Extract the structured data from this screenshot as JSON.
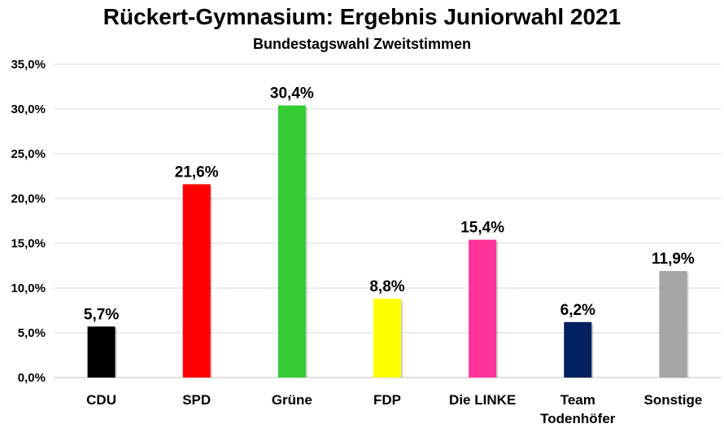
{
  "chart_data": {
    "type": "bar",
    "title": "Rückert-Gymnasium: Ergebnis Juniorwahl 2021",
    "subtitle": "Bundestagswahl Zweitstimmen",
    "categories": [
      "CDU",
      "SPD",
      "Grüne",
      "FDP",
      "Die LINKE",
      "Team Todenhöfer",
      "Sonstige"
    ],
    "category_lines": [
      [
        "CDU"
      ],
      [
        "SPD"
      ],
      [
        "Grüne"
      ],
      [
        "FDP"
      ],
      [
        "Die LINKE"
      ],
      [
        "Team",
        "Todenhöfer"
      ],
      [
        "Sonstige"
      ]
    ],
    "values": [
      5.7,
      21.6,
      30.4,
      8.8,
      15.4,
      6.2,
      11.9
    ],
    "data_labels": [
      "5,7%",
      "21,6%",
      "30,4%",
      "8,8%",
      "15,4%",
      "6,2%",
      "11,9%"
    ],
    "colors": [
      "#000000",
      "#ff0000",
      "#33cc33",
      "#ffff00",
      "#ff3399",
      "#002060",
      "#a6a6a6"
    ],
    "ylim": [
      0,
      35
    ],
    "yticks": [
      0,
      5,
      10,
      15,
      20,
      25,
      30,
      35
    ],
    "ytick_labels": [
      "0,0%",
      "5,0%",
      "10,0%",
      "15,0%",
      "20,0%",
      "25,0%",
      "30,0%",
      "35,0%"
    ],
    "grid": true,
    "xlabel": "",
    "ylabel": ""
  }
}
